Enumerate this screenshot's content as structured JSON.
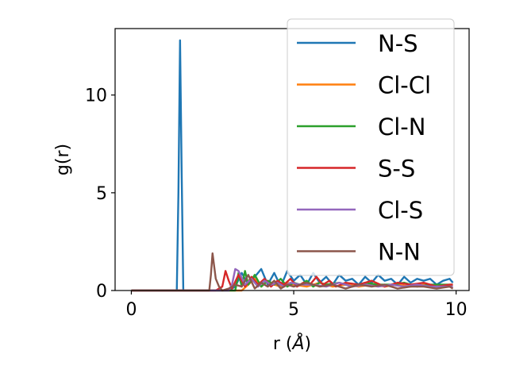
{
  "chart_data": {
    "type": "line",
    "title": "",
    "xlabel": "r (",
    "xlabel_unit": "Å",
    "xlabel_close": ")",
    "ylabel": "g(r)",
    "xlim": [
      -0.5,
      10.4
    ],
    "ylim": [
      0,
      13.4
    ],
    "xticks": [
      0,
      5,
      10
    ],
    "yticks": [
      0,
      5,
      10
    ],
    "grid": false,
    "legend_position": "top-right",
    "series": [
      {
        "name": "N-S",
        "color": "#1f77b4",
        "x": [
          0,
          0.5,
          1.0,
          1.4,
          1.45,
          1.5,
          1.55,
          1.6,
          1.65,
          2.0,
          3.0,
          3.2,
          3.4,
          3.6,
          3.8,
          4.0,
          4.2,
          4.4,
          4.6,
          4.8,
          5.0,
          5.2,
          5.4,
          5.6,
          5.8,
          6.0,
          6.2,
          6.4,
          6.6,
          6.8,
          7.0,
          7.2,
          7.4,
          7.6,
          7.8,
          8.0,
          8.2,
          8.4,
          8.6,
          8.8,
          9.0,
          9.2,
          9.4,
          9.6,
          9.8,
          9.9
        ],
        "y": [
          0,
          0,
          0,
          0,
          5.0,
          12.8,
          6.0,
          0,
          0,
          0,
          0,
          0.2,
          0.9,
          0.3,
          0.7,
          1.1,
          0.3,
          0.9,
          0.2,
          1.0,
          0.5,
          0.8,
          0.3,
          0.9,
          0.4,
          0.7,
          0.3,
          0.8,
          0.5,
          0.6,
          0.3,
          0.7,
          0.4,
          0.8,
          0.5,
          0.6,
          0.3,
          0.7,
          0.4,
          0.6,
          0.5,
          0.6,
          0.3,
          0.5,
          0.6,
          0.4
        ]
      },
      {
        "name": "Cl-Cl",
        "color": "#ff7f0e",
        "x": [
          0,
          1.0,
          2.0,
          3.0,
          3.4,
          3.6,
          3.8,
          4.0,
          4.2,
          4.4,
          4.6,
          4.8,
          5.0,
          5.4,
          5.8,
          6.2,
          6.6,
          7.0,
          7.4,
          7.8,
          8.2,
          8.6,
          9.0,
          9.4,
          9.8,
          9.9
        ],
        "y": [
          0,
          0,
          0,
          0,
          0,
          0.3,
          0.6,
          0.2,
          0.5,
          0.3,
          0.2,
          0.4,
          0.3,
          0.2,
          0.4,
          0.2,
          0.3,
          0.2,
          0.3,
          0.2,
          0.3,
          0.2,
          0.3,
          0.2,
          0.2,
          0.2
        ]
      },
      {
        "name": "Cl-N",
        "color": "#2ca02c",
        "x": [
          0,
          1.0,
          2.0,
          3.0,
          3.2,
          3.3,
          3.4,
          3.5,
          3.6,
          3.8,
          4.0,
          4.2,
          4.4,
          4.6,
          4.8,
          5.0,
          5.2,
          5.4,
          5.6,
          5.8,
          6.0,
          6.4,
          6.8,
          7.2,
          7.6,
          8.0,
          8.4,
          8.8,
          9.2,
          9.6,
          9.9
        ],
        "y": [
          0,
          0,
          0,
          0,
          0,
          0.9,
          0.2,
          1.0,
          0.3,
          0.8,
          0.2,
          0.5,
          0.3,
          0.6,
          0.2,
          0.4,
          0.3,
          0.5,
          0.2,
          0.4,
          0.3,
          0.4,
          0.2,
          0.4,
          0.3,
          0.3,
          0.4,
          0.2,
          0.3,
          0.3,
          0.3
        ]
      },
      {
        "name": "S-S",
        "color": "#d62728",
        "x": [
          0,
          1.0,
          2.0,
          2.6,
          2.8,
          2.9,
          3.0,
          3.1,
          3.3,
          3.5,
          3.7,
          3.9,
          4.1,
          4.3,
          4.5,
          4.7,
          4.9,
          5.1,
          5.3,
          5.5,
          5.7,
          5.9,
          6.1,
          6.3,
          6.6,
          7.0,
          7.4,
          7.8,
          8.2,
          8.6,
          9.0,
          9.4,
          9.8,
          9.9
        ],
        "y": [
          0,
          0,
          0,
          0,
          0.2,
          1.0,
          0.5,
          0.1,
          0.8,
          0.2,
          0.7,
          0.3,
          0.6,
          0.2,
          0.5,
          0.3,
          0.6,
          0.2,
          0.4,
          0.3,
          0.7,
          0.3,
          0.5,
          0.2,
          0.4,
          0.3,
          0.5,
          0.2,
          0.4,
          0.3,
          0.4,
          0.2,
          0.3,
          0.3
        ]
      },
      {
        "name": "Cl-S",
        "color": "#9467bd",
        "x": [
          0,
          1.0,
          2.0,
          3.0,
          3.1,
          3.2,
          3.3,
          3.5,
          3.7,
          3.9,
          4.1,
          4.3,
          4.5,
          4.7,
          4.9,
          5.2,
          5.6,
          6.0,
          6.4,
          6.8,
          7.2,
          7.6,
          8.0,
          8.4,
          8.8,
          9.2,
          9.6,
          9.9
        ],
        "y": [
          0,
          0,
          0,
          0,
          0.3,
          1.1,
          1.0,
          0.3,
          0.6,
          0.2,
          0.5,
          0.3,
          0.4,
          0.2,
          0.4,
          0.3,
          0.3,
          0.2,
          0.4,
          0.2,
          0.3,
          0.2,
          0.3,
          0.2,
          0.3,
          0.2,
          0.2,
          0.2
        ]
      },
      {
        "name": "N-N",
        "color": "#8c564b",
        "x": [
          0,
          1.0,
          2.0,
          2.4,
          2.45,
          2.5,
          2.6,
          2.7,
          2.8,
          3.0,
          3.2,
          3.4,
          3.6,
          3.8,
          4.0,
          4.2,
          4.4,
          4.6,
          4.8,
          5.0,
          5.4,
          5.8,
          6.2,
          6.6,
          7.0,
          7.4,
          7.8,
          8.2,
          8.6,
          9.0,
          9.4,
          9.8,
          9.9
        ],
        "y": [
          0,
          0,
          0,
          0,
          0.8,
          1.9,
          0.6,
          0.2,
          0,
          0.1,
          0.3,
          0.2,
          0.8,
          0.1,
          0.4,
          0.2,
          0.5,
          0.1,
          0.3,
          0.2,
          0.4,
          0.2,
          0.3,
          0.1,
          0.3,
          0.2,
          0.3,
          0.1,
          0.2,
          0.2,
          0.1,
          0.2,
          0.1
        ]
      }
    ]
  }
}
